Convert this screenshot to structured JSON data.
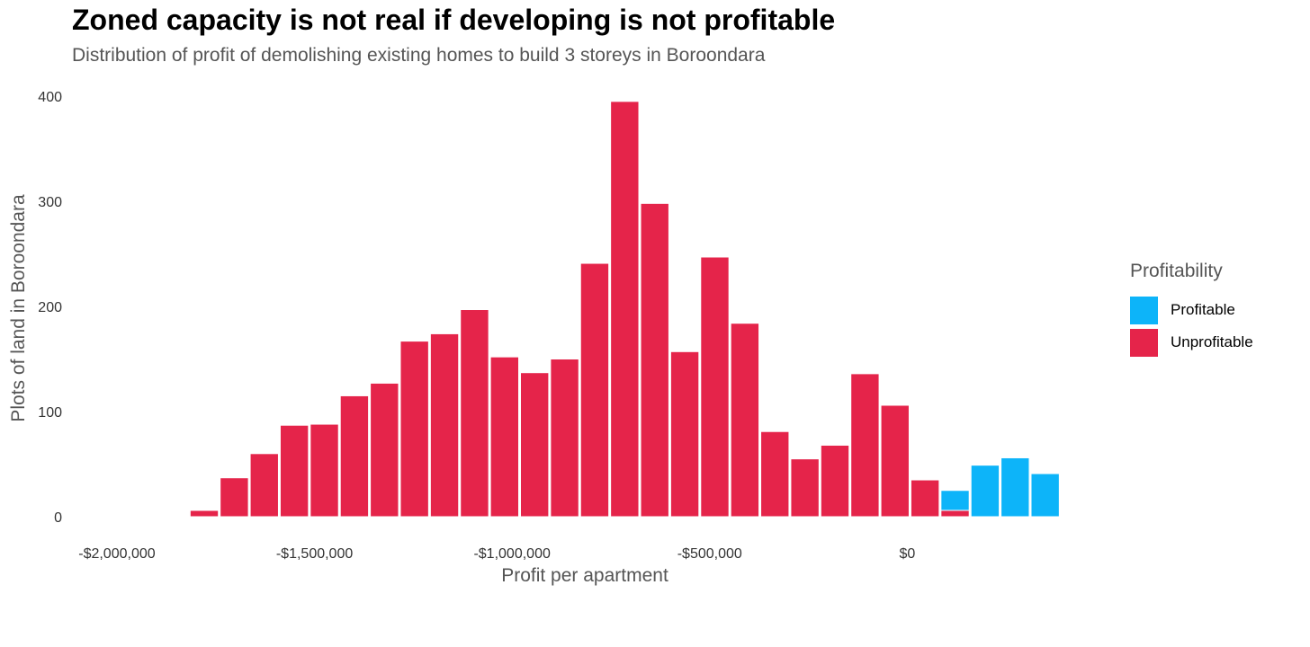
{
  "title": "Zoned capacity is not real if developing is not profitable",
  "subtitle": "Distribution of profit of demolishing existing homes to build 3 storeys in Boroondara",
  "legend": {
    "title": "Profitability",
    "items": [
      {
        "label": "Profitable",
        "color": "#0DB4F9"
      },
      {
        "label": "Unprofitable",
        "color": "#E5244A"
      }
    ]
  },
  "chart_data": {
    "type": "bar",
    "title": "Zoned capacity is not real if developing is not profitable",
    "subtitle": "Distribution of profit of demolishing existing homes to build 3 storeys in Boroondara",
    "xlabel": "Profit per apartment",
    "ylabel": "Plots of land in Boroondara",
    "xlim": [
      -2075000,
      475000
    ],
    "ylim": [
      0,
      400
    ],
    "grid": false,
    "legend_position": "right",
    "bin_width": 76000,
    "x_ticks": [
      {
        "value": -2000000,
        "label": "-$2,000,000"
      },
      {
        "value": -1500000,
        "label": "-$1,500,000"
      },
      {
        "value": -1000000,
        "label": "-$1,000,000"
      },
      {
        "value": -500000,
        "label": "-$500,000"
      },
      {
        "value": 0,
        "label": "$0"
      }
    ],
    "y_ticks": [
      {
        "value": 0,
        "label": "0"
      },
      {
        "value": 100,
        "label": "100"
      },
      {
        "value": 200,
        "label": "200"
      },
      {
        "value": 300,
        "label": "300"
      },
      {
        "value": 400,
        "label": "400"
      }
    ],
    "x": [
      -1779000,
      -1703000,
      -1627000,
      -1551000,
      -1475000,
      -1399000,
      -1323000,
      -1247000,
      -1171000,
      -1095000,
      -1019000,
      -943000,
      -867000,
      -791000,
      -715000,
      -639000,
      -563000,
      -487000,
      -411000,
      -335000,
      -259000,
      -183000,
      -107000,
      -31000,
      45000,
      121000,
      197000,
      273000,
      349000,
      425000
    ],
    "series": [
      {
        "name": "Unprofitable",
        "color": "#E5244A",
        "values": [
          6,
          37,
          60,
          87,
          88,
          115,
          127,
          167,
          174,
          197,
          152,
          137,
          150,
          241,
          395,
          298,
          157,
          247,
          184,
          81,
          55,
          68,
          136,
          106,
          35,
          6,
          0,
          0,
          0,
          0
        ]
      },
      {
        "name": "Profitable",
        "color": "#0DB4F9",
        "values": [
          0,
          0,
          0,
          0,
          0,
          0,
          0,
          0,
          0,
          0,
          0,
          0,
          0,
          0,
          0,
          0,
          0,
          0,
          0,
          0,
          0,
          0,
          0,
          0,
          0,
          19,
          49,
          56,
          41,
          0
        ]
      }
    ]
  }
}
